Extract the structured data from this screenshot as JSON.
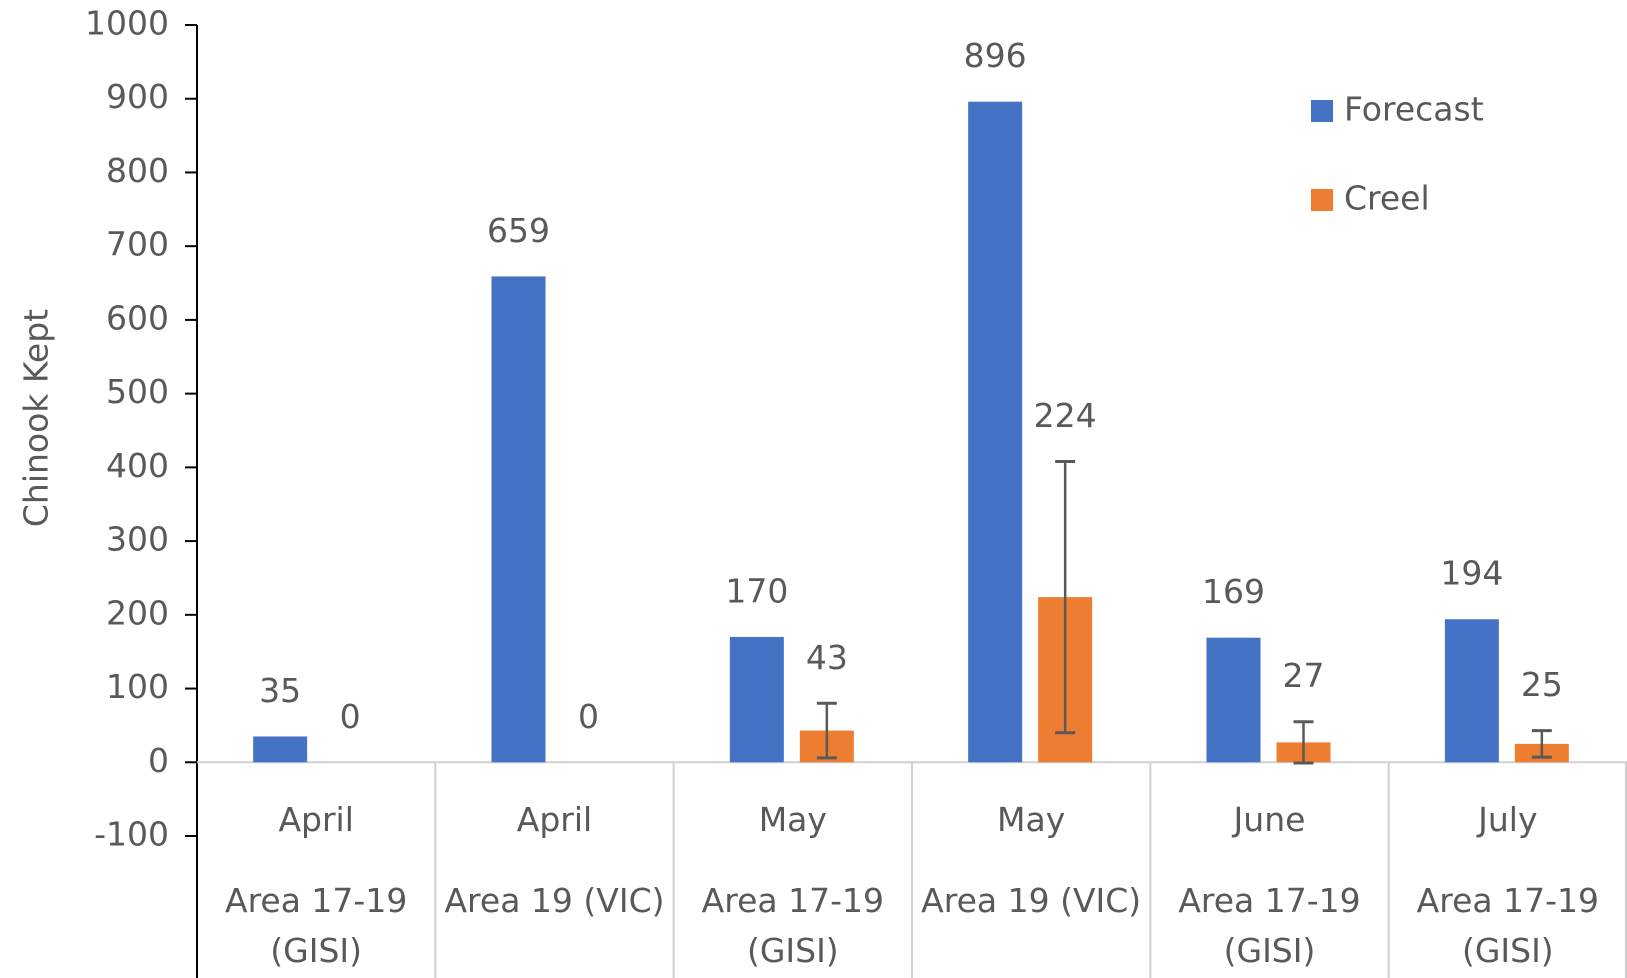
{
  "chart_data": {
    "type": "bar",
    "ylabel": "Chinook Kept",
    "categories": [
      "April",
      "April",
      "May",
      "May",
      "June",
      "July"
    ],
    "subcategories": [
      "Area 17-19 (GISI)",
      "Area 19 (VIC)",
      "Area 17-19 (GISI)",
      "Area 19 (VIC)",
      "Area 17-19 (GISI)",
      "Area 17-19 (GISI)"
    ],
    "series": [
      {
        "name": "Forecast",
        "color": "#4472c4",
        "values": [
          35,
          659,
          170,
          896,
          169,
          194
        ],
        "errors": [
          null,
          null,
          null,
          null,
          null,
          null
        ]
      },
      {
        "name": "Creel",
        "color": "#ed7d31",
        "values": [
          0,
          0,
          43,
          224,
          27,
          25
        ],
        "errors": [
          null,
          null,
          37,
          184,
          28,
          18
        ]
      }
    ],
    "error_color": "#595959",
    "ylim": [
      -100,
      1000
    ],
    "yticks": [
      -100,
      0,
      100,
      200,
      300,
      400,
      500,
      600,
      700,
      800,
      900,
      1000
    ],
    "legend": "top-right"
  }
}
